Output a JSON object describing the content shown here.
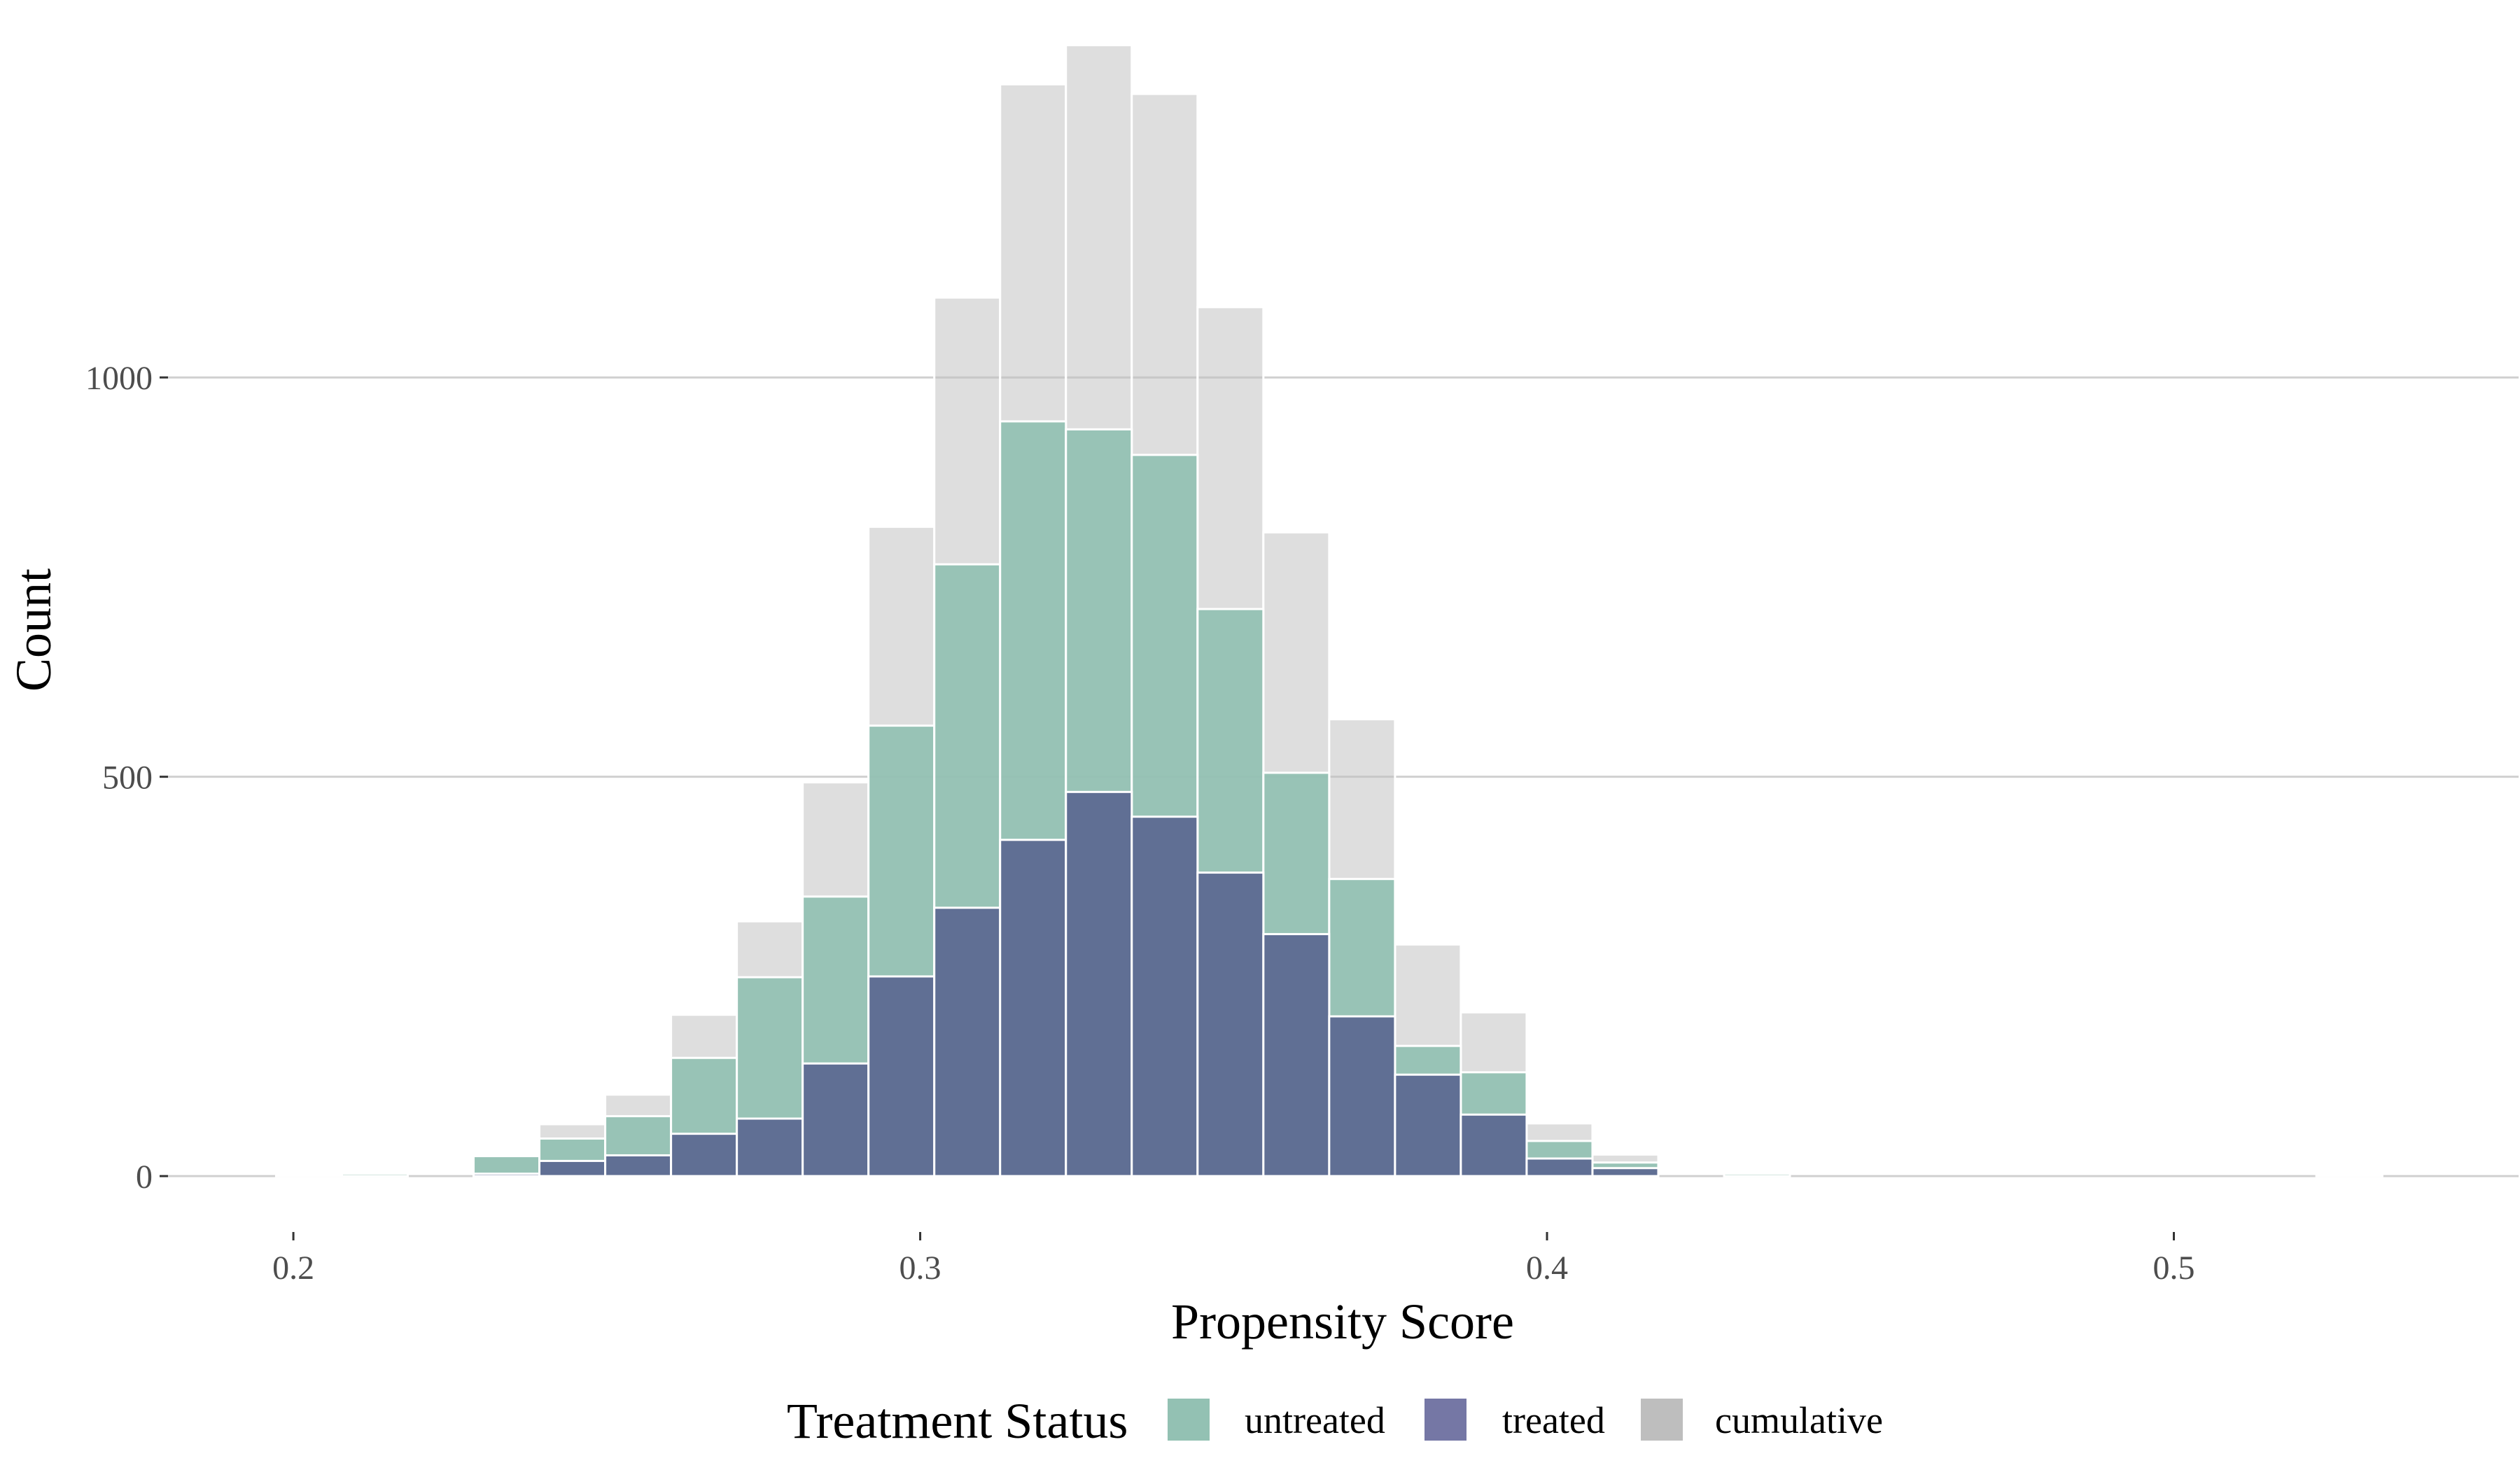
{
  "chart_data": {
    "type": "bar",
    "xlabel": "Propensity Score",
    "ylabel": "Count",
    "xlim": [
      0.18,
      0.555
    ],
    "ylim": [
      -70,
      1420
    ],
    "x_ticks": [
      0.2,
      0.3,
      0.4,
      0.5
    ],
    "x_tick_labels": [
      "0.2",
      "0.3",
      "0.4",
      "0.5"
    ],
    "y_ticks": [
      0,
      500,
      1000
    ],
    "y_tick_labels": [
      "0",
      "500",
      "1000"
    ],
    "grid": "horizontal major lines only",
    "bar_outline": "#ffffff",
    "bins": {
      "centers": [
        0.2025,
        0.213,
        0.2235,
        0.234,
        0.2445,
        0.255,
        0.2655,
        0.276,
        0.2865,
        0.297,
        0.3075,
        0.318,
        0.3285,
        0.339,
        0.3495,
        0.36,
        0.3705,
        0.381,
        0.3915,
        0.402,
        0.4125,
        0.423,
        0.4335,
        0.444,
        0.4545,
        0.465,
        0.4755,
        0.486,
        0.4965,
        0.507,
        0.5175,
        0.528
      ],
      "width": 0.0105
    },
    "series": [
      {
        "name": "cumulative",
        "color": "#bebebe",
        "opacity": 0.5,
        "values": [
          1,
          3,
          0,
          27,
          65,
          102,
          202,
          319,
          493,
          813,
          1100,
          1367,
          1416,
          1355,
          1088,
          806,
          572,
          290,
          205,
          66,
          27,
          0,
          3,
          0,
          0,
          0,
          0,
          0,
          0,
          0,
          0,
          1
        ]
      },
      {
        "name": "untreated",
        "color": "#93c1b3",
        "opacity": 0.95,
        "values": [
          1,
          3,
          0,
          25,
          47,
          75,
          148,
          249,
          350,
          564,
          766,
          945,
          935,
          903,
          710,
          505,
          372,
          163,
          130,
          44,
          17,
          0,
          3,
          0,
          0,
          0,
          0,
          0,
          0,
          0,
          0,
          1
        ]
      },
      {
        "name": "treated",
        "color": "#606f94",
        "opacity": 1,
        "values": [
          0,
          0,
          0,
          3,
          19,
          26,
          53,
          72,
          141,
          250,
          336,
          421,
          481,
          450,
          380,
          303,
          200,
          127,
          77,
          22,
          10,
          0,
          0,
          0,
          0,
          0,
          0,
          0,
          0,
          0,
          0,
          0
        ]
      }
    ],
    "legend": {
      "title": "Treatment Status",
      "position": "bottom",
      "items": [
        {
          "label": "untreated",
          "color": "#93c1b3"
        },
        {
          "label": "treated",
          "color": "#7577a5"
        },
        {
          "label": "cumulative",
          "color": "#bebebe"
        }
      ]
    }
  }
}
